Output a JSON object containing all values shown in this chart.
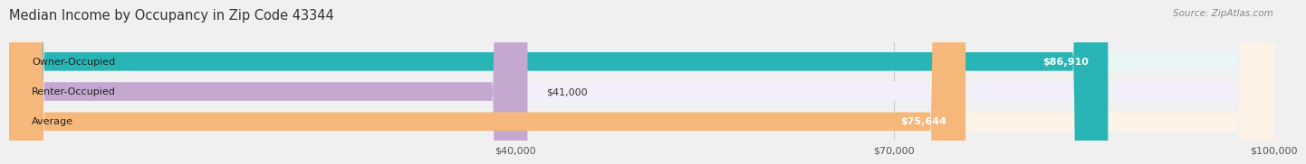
{
  "title": "Median Income by Occupancy in Zip Code 43344",
  "source": "Source: ZipAtlas.com",
  "categories": [
    "Owner-Occupied",
    "Renter-Occupied",
    "Average"
  ],
  "values": [
    86910,
    41000,
    75644
  ],
  "bar_colors": [
    "#29b5b5",
    "#c4a8d0",
    "#f5b87a"
  ],
  "bar_bg_colors": [
    "#eaf6f6",
    "#f3eff8",
    "#fdf3e7"
  ],
  "value_labels": [
    "$86,910",
    "$41,000",
    "$75,644"
  ],
  "xlim": [
    0,
    100000
  ],
  "xticks": [
    40000,
    70000,
    100000
  ],
  "xtick_labels": [
    "$40,000",
    "$70,000",
    "$100,000"
  ],
  "title_fontsize": 10.5,
  "source_fontsize": 7.5,
  "label_fontsize": 8,
  "value_fontsize": 8,
  "background_color": "#f0f0f0",
  "bar_height": 0.62,
  "bar_sep": 0.15
}
